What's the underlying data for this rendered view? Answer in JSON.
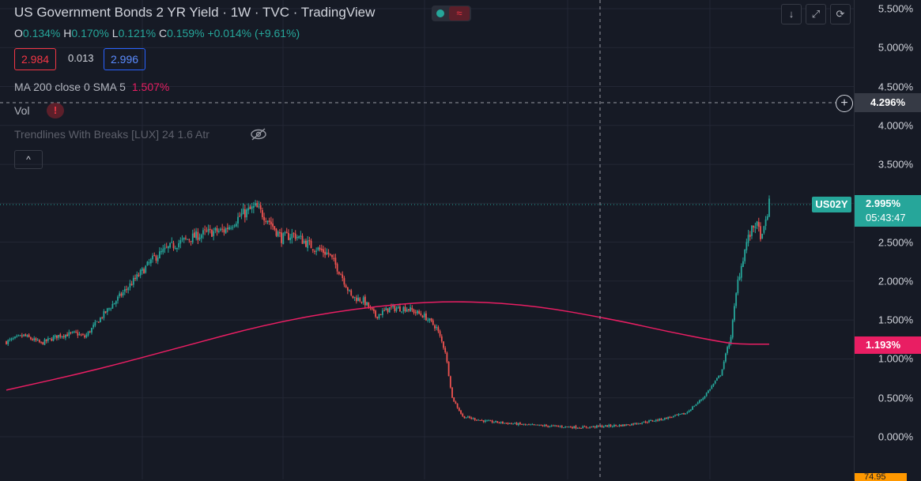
{
  "header": {
    "title": "US Government Bonds 2 YR Yield · 1W · TVC · TradingView",
    "ohlc": {
      "o_label": "O",
      "o": "0.134%",
      "h_label": "H",
      "h": "0.170%",
      "l_label": "L",
      "l": "0.121%",
      "c_label": "C",
      "c": "0.159%",
      "change": "+0.014% (+9.61%)"
    },
    "bid": "2.984",
    "spread": "0.013",
    "ask": "2.996",
    "wave_icon": "≈"
  },
  "indicators": {
    "ma_label": "MA 200 close 0 SMA 5",
    "ma_value": "1.507%",
    "vol_label": "Vol",
    "vol_warning": "!",
    "trendlines_label": "Trendlines With Breaks [LUX] 24 1.6 Atr",
    "collapse_icon": "^"
  },
  "toolbar": {
    "down_icon": "↓",
    "fullscreen_icon": "⤢",
    "refresh_icon": "⟳"
  },
  "crosshair": {
    "price_label": "4.296%",
    "add_icon": "+"
  },
  "last_price": {
    "symbol": "US02Y",
    "price": "2.995%",
    "countdown": "05:43:47"
  },
  "ma_tag": "1.193%",
  "bottom_tag": "74.95",
  "colors": {
    "up": "#26a69a",
    "down": "#ef5350",
    "ma": "#e91e63",
    "background": "#161a25",
    "grid": "#232735"
  },
  "chart_data": {
    "type": "candlestick",
    "y_axis": {
      "ticks": [
        "5.500%",
        "5.000%",
        "4.500%",
        "4.000%",
        "3.500%",
        "3.000%",
        "2.500%",
        "2.000%",
        "1.500%",
        "1.000%",
        "0.500%",
        "0.000%"
      ],
      "tick_values": [
        5.5,
        5.0,
        4.5,
        4.0,
        3.5,
        3.0,
        2.5,
        2.0,
        1.5,
        1.0,
        0.5,
        0.0
      ],
      "ylim": [
        -0.5,
        5.6
      ]
    },
    "close_anchors": [
      [
        0,
        1.22
      ],
      [
        10,
        1.3
      ],
      [
        20,
        1.2
      ],
      [
        30,
        1.3
      ],
      [
        40,
        1.33
      ],
      [
        45,
        1.28
      ],
      [
        55,
        1.55
      ],
      [
        65,
        1.8
      ],
      [
        75,
        2.05
      ],
      [
        85,
        2.3
      ],
      [
        95,
        2.45
      ],
      [
        105,
        2.55
      ],
      [
        115,
        2.62
      ],
      [
        125,
        2.65
      ],
      [
        135,
        2.85
      ],
      [
        143,
        2.95
      ],
      [
        150,
        2.8
      ],
      [
        158,
        2.55
      ],
      [
        165,
        2.6
      ],
      [
        175,
        2.45
      ],
      [
        185,
        2.35
      ],
      [
        192,
        2.1
      ],
      [
        198,
        1.8
      ],
      [
        205,
        1.75
      ],
      [
        212,
        1.55
      ],
      [
        220,
        1.65
      ],
      [
        230,
        1.65
      ],
      [
        240,
        1.55
      ],
      [
        247,
        1.4
      ],
      [
        252,
        1.1
      ],
      [
        256,
        0.5
      ],
      [
        262,
        0.26
      ],
      [
        275,
        0.2
      ],
      [
        300,
        0.15
      ],
      [
        330,
        0.12
      ],
      [
        355,
        0.15
      ],
      [
        375,
        0.22
      ],
      [
        390,
        0.3
      ],
      [
        400,
        0.5
      ],
      [
        410,
        0.8
      ],
      [
        416,
        1.3
      ],
      [
        420,
        2.0
      ],
      [
        425,
        2.5
      ],
      [
        430,
        2.75
      ],
      [
        434,
        2.55
      ],
      [
        438,
        2.99
      ]
    ],
    "bar_count": 439,
    "ma_series": {
      "name": "MA 200 close 0 SMA 5",
      "points": [
        [
          0,
          0.6
        ],
        [
          50,
          0.85
        ],
        [
          100,
          1.15
        ],
        [
          150,
          1.45
        ],
        [
          200,
          1.65
        ],
        [
          250,
          1.75
        ],
        [
          300,
          1.7
        ],
        [
          350,
          1.5
        ],
        [
          380,
          1.35
        ],
        [
          410,
          1.22
        ],
        [
          420,
          1.19
        ],
        [
          438,
          1.19
        ]
      ]
    }
  }
}
